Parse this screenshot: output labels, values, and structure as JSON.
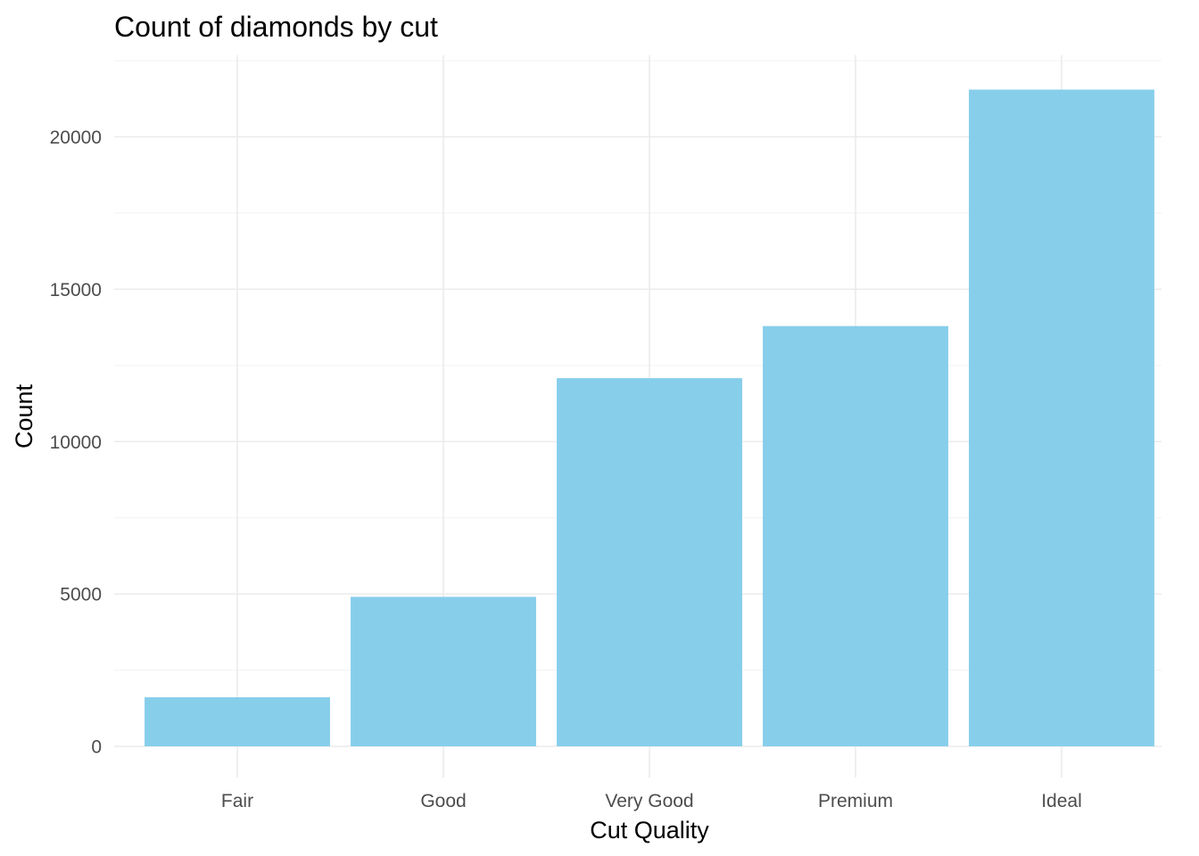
{
  "chart_data": {
    "type": "bar",
    "title": "Count of diamonds by cut",
    "xlabel": "Cut Quality",
    "ylabel": "Count",
    "categories": [
      "Fair",
      "Good",
      "Very Good",
      "Premium",
      "Ideal"
    ],
    "values": [
      1610,
      4906,
      12082,
      13791,
      21551
    ],
    "ylim": [
      0,
      22500
    ],
    "yticks": [
      0,
      5000,
      10000,
      15000,
      20000
    ],
    "ytick_labels": [
      "0",
      "5000",
      "10000",
      "15000",
      "20000"
    ],
    "grid": true,
    "bar_color": "#87CEEB"
  }
}
